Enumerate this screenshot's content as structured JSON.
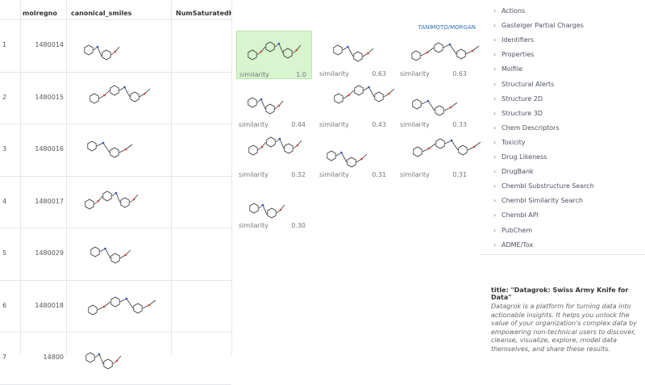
{
  "grid": {
    "columns": [
      "molregno",
      "canonical_smiles",
      "NumSaturatedHete"
    ],
    "rows": [
      {
        "index": "1",
        "molregno": "1480014"
      },
      {
        "index": "2",
        "molregno": "1480015"
      },
      {
        "index": "3",
        "molregno": "1480016"
      },
      {
        "index": "4",
        "molregno": "1480017"
      },
      {
        "index": "5",
        "molregno": "1480029"
      },
      {
        "index": "6",
        "molregno": "1480018"
      },
      {
        "index": "7",
        "molregno": "14800"
      }
    ]
  },
  "similarity": {
    "method": "TANIMOTO/MORGAN",
    "items": [
      {
        "label": "similarity",
        "value": "1.0"
      },
      {
        "label": "similarity",
        "value": "0.63"
      },
      {
        "label": "similarity",
        "value": "0.63"
      },
      {
        "label": "similarity",
        "value": "0.44"
      },
      {
        "label": "similarity",
        "value": "0.43"
      },
      {
        "label": "similarity",
        "value": "0.33"
      },
      {
        "label": "similarity",
        "value": "0.32"
      },
      {
        "label": "similarity",
        "value": "0.31"
      },
      {
        "label": "similarity",
        "value": "0.31"
      },
      {
        "label": "similarity",
        "value": "0.30"
      }
    ]
  },
  "panes": [
    "Actions",
    "Gasteiger Partial Charges",
    "Identifiers",
    "Properties",
    "Molfile",
    "Structural Alerts",
    "Structure 2D",
    "Structure 3D",
    "Chem Descriptors",
    "Toxicity",
    "Drug Likeness",
    "DrugBank",
    "Chembl Substructure Search",
    "Chembl Similarity Search",
    "Chembl API",
    "PubChem",
    "ADME/Tox"
  ],
  "info": {
    "title": "title: \"Datagrok: Swiss Army Knife for Data\"",
    "text": "Datagrok is a platform for turning data into actionable insights. It helps you unlock the value of your organization's complex data by empowering non-technical users to discover, cleanse, visualize, explore, model data themselves, and share these results."
  }
}
